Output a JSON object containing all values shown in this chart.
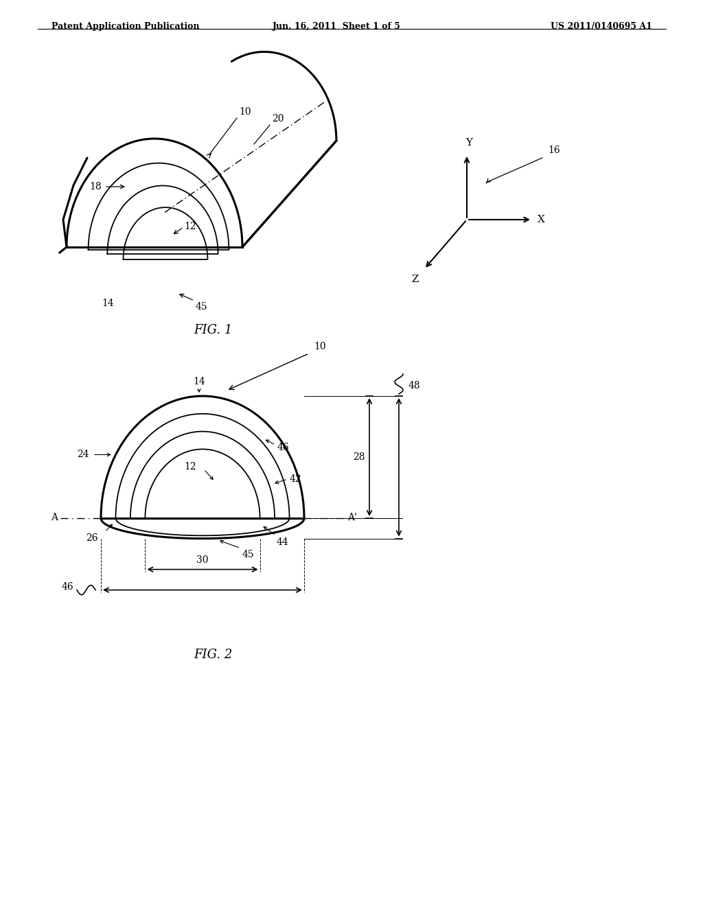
{
  "bg_color": "#ffffff",
  "line_color": "#000000",
  "header_left": "Patent Application Publication",
  "header_mid": "Jun. 16, 2011  Sheet 1 of 5",
  "header_right": "US 2011/0140695 A1",
  "fig1_label": "FIG. 1",
  "fig2_label": "FIG. 2",
  "labels": {
    "10_fig1": "10",
    "20_fig1": "20",
    "18_fig1": "18",
    "12_fig1": "12",
    "14_fig1": "14",
    "45_fig1": "45",
    "16_fig1": "16",
    "X_fig1": "X",
    "Y_fig1": "Y",
    "Z_fig1": "Z",
    "10_fig2": "10",
    "14_fig2": "14",
    "46_fig2a": "46",
    "42_fig2": "42",
    "12_fig2": "12",
    "24_fig2": "24",
    "26_fig2": "26",
    "44_fig2": "44",
    "45_fig2": "45",
    "30_fig2": "30",
    "46_fig2b": "46",
    "28_fig2": "28",
    "48_fig2": "48"
  }
}
